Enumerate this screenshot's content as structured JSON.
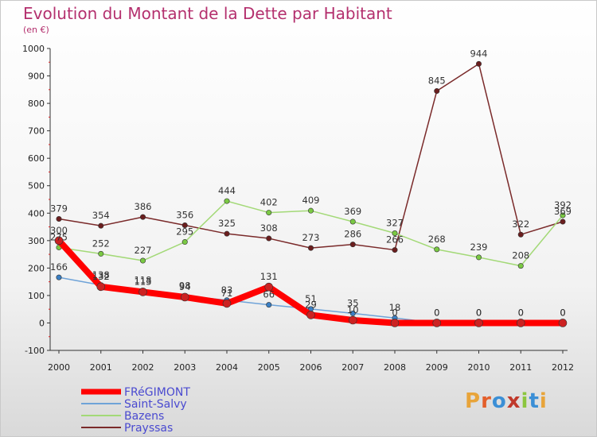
{
  "title": "Evolution du Montant de la Dette par Habitant",
  "subtitle": "(en €)",
  "logo": {
    "text": "Proxiti",
    "colors": [
      "#e8a43a",
      "#e35f2b",
      "#3b8fd6",
      "#c0392b",
      "#8cc63f",
      "#3b8fd6",
      "#e8a43a"
    ]
  },
  "chart_data": {
    "type": "line",
    "categories": [
      "2000",
      "2001",
      "2002",
      "2003",
      "2004",
      "2005",
      "2006",
      "2007",
      "2008",
      "2009",
      "2010",
      "2011",
      "2012"
    ],
    "ylim": [
      -100,
      1000
    ],
    "yticks": [
      -100,
      0,
      100,
      200,
      300,
      400,
      500,
      600,
      700,
      800,
      900,
      1000
    ],
    "grid": false,
    "legend": "bottom-left",
    "series": [
      {
        "name": "FRéGIMONT",
        "color": "#ff0000",
        "marker": "#cc2222",
        "values": [
          300,
          132,
          113,
          94,
          71,
          131,
          29,
          10,
          0,
          0,
          0,
          0,
          0
        ]
      },
      {
        "name": "Saint-Salvy",
        "color": "#6fa3d8",
        "marker": "#3a7fc4",
        "values": [
          166,
          138,
          118,
          98,
          83,
          66,
          51,
          35,
          18,
          0,
          0,
          0,
          0
        ]
      },
      {
        "name": "Bazens",
        "color": "#a3d977",
        "marker": "#7ac943",
        "values": [
          275,
          252,
          227,
          295,
          444,
          402,
          409,
          369,
          327,
          268,
          239,
          208,
          392
        ]
      },
      {
        "name": "Prayssas",
        "color": "#7a2a2a",
        "marker": "#6b1e1e",
        "values": [
          379,
          354,
          386,
          356,
          325,
          308,
          273,
          286,
          266,
          845,
          944,
          322,
          369
        ]
      }
    ]
  }
}
